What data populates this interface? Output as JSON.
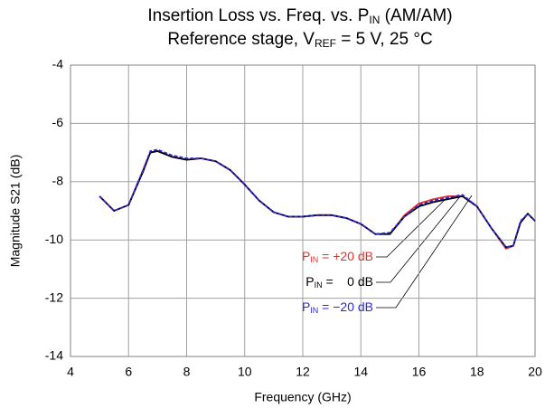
{
  "chart_data": {
    "type": "line",
    "title": [
      "Insertion Loss vs. Freq. vs. P",
      "IN",
      " (AM/AM)"
    ],
    "subtitle": [
      "Reference stage, V",
      "REF",
      " = 5 V, 25 °C"
    ],
    "x_label": "Frequency (GHz)",
    "y_label": "Magnitude S21 (dB)",
    "x": [
      5,
      5.5,
      6,
      6.5,
      6.75,
      7,
      7.5,
      8,
      8.5,
      9,
      9.5,
      10,
      10.5,
      11,
      11.5,
      12,
      12.5,
      13,
      13.5,
      14,
      14.5,
      15,
      15.5,
      16,
      16.5,
      17,
      17.5,
      18,
      18.5,
      19,
      19.25,
      19.5,
      19.75,
      20
    ],
    "series": [
      {
        "name": [
          "P",
          "IN",
          " = +20 dB"
        ],
        "color": "#e8302a",
        "dash": false,
        "values": [
          -8.5,
          -9.0,
          -8.8,
          -7.6,
          -7.0,
          -6.95,
          -7.15,
          -7.25,
          -7.2,
          -7.3,
          -7.6,
          -8.1,
          -8.65,
          -9.05,
          -9.2,
          -9.2,
          -9.15,
          -9.15,
          -9.25,
          -9.45,
          -9.8,
          -9.8,
          -9.15,
          -8.75,
          -8.6,
          -8.5,
          -8.5,
          -8.85,
          -9.6,
          -10.3,
          -10.2,
          -9.4,
          -9.1,
          -9.35
        ]
      },
      {
        "name": [
          "P",
          "IN",
          " =    0 dB"
        ],
        "color": "#000000",
        "dash": false,
        "values": [
          -8.5,
          -9.0,
          -8.8,
          -7.65,
          -7.0,
          -6.95,
          -7.15,
          -7.25,
          -7.2,
          -7.3,
          -7.6,
          -8.1,
          -8.65,
          -9.05,
          -9.2,
          -9.2,
          -9.15,
          -9.15,
          -9.25,
          -9.45,
          -9.8,
          -9.8,
          -9.2,
          -8.85,
          -8.7,
          -8.6,
          -8.5,
          -8.85,
          -9.6,
          -10.25,
          -10.2,
          -9.4,
          -9.1,
          -9.35
        ]
      },
      {
        "name": [
          "P",
          "IN",
          " = −20 dB"
        ],
        "color": "#2a2ad8",
        "dash": true,
        "values": [
          -8.5,
          -9.0,
          -8.8,
          -7.6,
          -6.95,
          -6.9,
          -7.1,
          -7.2,
          -7.2,
          -7.3,
          -7.6,
          -8.1,
          -8.65,
          -9.05,
          -9.2,
          -9.2,
          -9.15,
          -9.15,
          -9.25,
          -9.45,
          -9.8,
          -9.75,
          -9.2,
          -8.8,
          -8.65,
          -8.55,
          -8.45,
          -8.85,
          -9.6,
          -10.25,
          -10.2,
          -9.35,
          -9.1,
          -9.35
        ]
      }
    ],
    "xlim": [
      4,
      20
    ],
    "xticks": [
      4,
      6,
      8,
      10,
      12,
      14,
      16,
      18,
      20
    ],
    "ylim": [
      -14,
      -4
    ],
    "yticks": [
      -14,
      -12,
      -10,
      -8,
      -6,
      -4
    ],
    "grid": true
  }
}
